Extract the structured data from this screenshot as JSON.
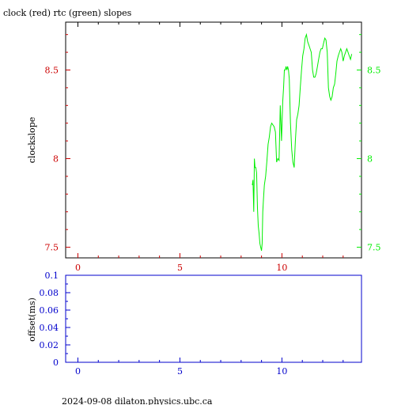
{
  "title": "clock (red) rtc (green) slopes",
  "footer": "2024-09-08  dilaton.physics.ubc.ca",
  "colors": {
    "clock": "#cc0000",
    "rtc": "#00ee00",
    "offset_axis": "#0000cc",
    "frame": "#000000"
  },
  "chart_data": [
    {
      "type": "line",
      "name": "slopes",
      "ylabel": "clockslope",
      "xlim": [
        -0.6,
        13.9
      ],
      "ylim": [
        7.44,
        8.77
      ],
      "xticks": [
        "0",
        "5",
        "10"
      ],
      "xtick_values": [
        0,
        5,
        10
      ],
      "yticks_left": [
        "7.5",
        "8",
        "8.5"
      ],
      "yticks_right": [
        "7.5",
        "8",
        "8.5"
      ],
      "ytick_values": [
        7.5,
        8,
        8.5
      ],
      "series": [
        {
          "name": "rtc",
          "x": [
            8.55,
            8.58,
            8.62,
            8.65,
            8.68,
            8.72,
            8.76,
            8.8,
            8.84,
            8.88,
            8.92,
            8.96,
            9.0,
            9.03,
            9.06,
            9.1,
            9.14,
            9.2,
            9.26,
            9.32,
            9.38,
            9.44,
            9.5,
            9.56,
            9.62,
            9.68,
            9.74,
            9.8,
            9.86,
            9.92,
            9.98,
            10.04,
            10.08,
            10.12,
            10.16,
            10.2,
            10.24,
            10.28,
            10.32,
            10.36,
            10.42,
            10.48,
            10.54,
            10.6,
            10.66,
            10.72,
            10.78,
            10.84,
            10.9,
            10.96,
            11.02,
            11.08,
            11.14,
            11.2,
            11.26,
            11.32,
            11.38,
            11.44,
            11.5,
            11.56,
            11.62,
            11.68,
            11.74,
            11.8,
            11.86,
            11.92,
            11.98,
            12.04,
            12.1,
            12.16,
            12.22,
            12.28,
            12.34,
            12.4,
            12.46,
            12.52,
            12.58,
            12.64,
            12.7,
            12.76,
            12.82,
            12.88,
            12.94,
            13.0,
            13.06,
            13.12,
            13.18,
            13.24,
            13.3,
            13.36,
            13.42
          ],
          "values": [
            7.85,
            7.88,
            7.7,
            8.0,
            7.95,
            7.95,
            7.92,
            7.72,
            7.62,
            7.58,
            7.52,
            7.5,
            7.48,
            7.52,
            7.7,
            7.78,
            7.85,
            7.9,
            7.98,
            8.08,
            8.12,
            8.18,
            8.2,
            8.19,
            8.18,
            8.15,
            7.98,
            8.0,
            7.99,
            8.3,
            8.1,
            8.32,
            8.4,
            8.5,
            8.5,
            8.52,
            8.5,
            8.52,
            8.5,
            8.45,
            8.2,
            8.05,
            7.98,
            7.95,
            8.1,
            8.22,
            8.25,
            8.3,
            8.4,
            8.5,
            8.58,
            8.62,
            8.68,
            8.7,
            8.66,
            8.64,
            8.62,
            8.6,
            8.5,
            8.46,
            8.46,
            8.48,
            8.52,
            8.56,
            8.6,
            8.62,
            8.62,
            8.65,
            8.68,
            8.67,
            8.6,
            8.4,
            8.35,
            8.33,
            8.35,
            8.4,
            8.42,
            8.48,
            8.55,
            8.58,
            8.6,
            8.62,
            8.6,
            8.55,
            8.58,
            8.6,
            8.62,
            8.6,
            8.58,
            8.56,
            8.59
          ]
        }
      ]
    },
    {
      "type": "line",
      "name": "offset",
      "ylabel": "offset(ms)",
      "xlim": [
        -0.6,
        13.9
      ],
      "ylim": [
        0,
        0.1
      ],
      "xticks": [
        "0",
        "5",
        "10"
      ],
      "xtick_values": [
        0,
        5,
        10
      ],
      "yticks": [
        "0",
        "0.02",
        "0.04",
        "0.06",
        "0.08",
        "0.1"
      ],
      "ytick_values": [
        0,
        0.02,
        0.04,
        0.06,
        0.08,
        0.1
      ],
      "series": []
    }
  ]
}
